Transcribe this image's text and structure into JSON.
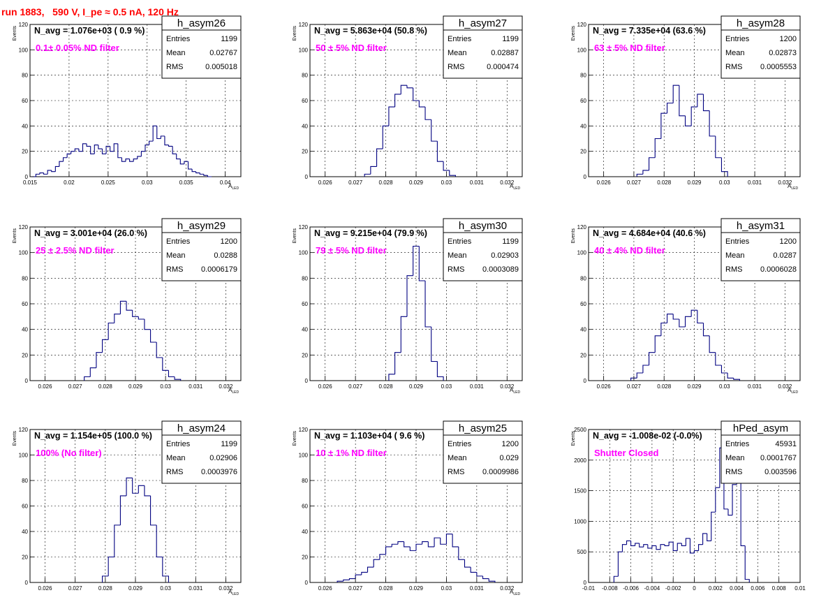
{
  "run_title": "run 1883,   590 V, I_pe ≈ 0.5 nA, 120 Hz",
  "colors": {
    "title": "#ff0000",
    "annotation": "#ff00ff",
    "histogram": "#000080",
    "grid": "#000000"
  },
  "chart_data": [
    {
      "type": "histogram",
      "name": "h_asym26",
      "navg": "N_avg = 1.076e+03 ( 0.9 %)",
      "filter": "0.1± 0.05% ND filter",
      "stats": {
        "entries": "1199",
        "mean": "0.02767",
        "rms": "0.005018"
      },
      "xlim": [
        0.015,
        0.042
      ],
      "ylim": [
        0,
        120
      ],
      "xticks": [
        "0.015",
        "0.02",
        "0.025",
        "0.03",
        "0.035",
        "0.04"
      ],
      "yticks": [
        "0",
        "20",
        "40",
        "60",
        "80",
        "100",
        "120"
      ],
      "ylabel": "Events",
      "xlabel": "A_LED",
      "x": [
        0.0155,
        0.016,
        0.0165,
        0.017,
        0.0175,
        0.018,
        0.0185,
        0.019,
        0.0195,
        0.02,
        0.0205,
        0.021,
        0.0215,
        0.022,
        0.0225,
        0.023,
        0.0235,
        0.024,
        0.0245,
        0.025,
        0.0255,
        0.026,
        0.0265,
        0.027,
        0.0275,
        0.028,
        0.0285,
        0.029,
        0.0295,
        0.03,
        0.0305,
        0.031,
        0.0315,
        0.032,
        0.0325,
        0.033,
        0.0335,
        0.034,
        0.0345,
        0.035,
        0.0355,
        0.036,
        0.0365,
        0.037,
        0.0375,
        0.038
      ],
      "values": [
        0,
        2,
        3,
        2,
        5,
        4,
        8,
        12,
        15,
        18,
        20,
        22,
        20,
        26,
        24,
        18,
        25,
        22,
        18,
        24,
        20,
        26,
        15,
        12,
        14,
        12,
        14,
        16,
        20,
        25,
        28,
        40,
        30,
        32,
        25,
        24,
        18,
        14,
        10,
        12,
        6,
        4,
        3,
        2,
        1,
        0
      ]
    },
    {
      "type": "histogram",
      "name": "h_asym27",
      "navg": "N_avg = 5.863e+04 (50.8 %)",
      "filter": "50 ± 5% ND filter",
      "stats": {
        "entries": "1199",
        "mean": "0.02887",
        "rms": "0.000474"
      },
      "xlim": [
        0.0255,
        0.0325
      ],
      "ylim": [
        0,
        120
      ],
      "xticks": [
        "0.026",
        "0.027",
        "0.028",
        "0.029",
        "0.03",
        "0.031",
        "0.032"
      ],
      "yticks": [
        "0",
        "20",
        "40",
        "60",
        "80",
        "100",
        "120"
      ],
      "ylabel": "Events",
      "xlabel": "A_LED",
      "x": [
        0.0274,
        0.0276,
        0.0278,
        0.028,
        0.0282,
        0.0284,
        0.0286,
        0.0288,
        0.029,
        0.0292,
        0.0294,
        0.0296,
        0.0298,
        0.03,
        0.0302
      ],
      "values": [
        2,
        8,
        22,
        40,
        55,
        65,
        72,
        70,
        60,
        55,
        45,
        28,
        12,
        5,
        1
      ]
    },
    {
      "type": "histogram",
      "name": "h_asym28",
      "navg": "N_avg = 7.335e+04 (63.6 %)",
      "filter": "63 ± 5% ND filter",
      "stats": {
        "entries": "1200",
        "mean": "0.02873",
        "rms": "0.0005553"
      },
      "xlim": [
        0.0255,
        0.0325
      ],
      "ylim": [
        0,
        120
      ],
      "xticks": [
        "0.026",
        "0.027",
        "0.028",
        "0.029",
        "0.03",
        "0.031",
        "0.032"
      ],
      "yticks": [
        "0",
        "20",
        "40",
        "60",
        "80",
        "100",
        "120"
      ],
      "ylabel": "Events",
      "xlabel": "A_LED",
      "x": [
        0.0272,
        0.0274,
        0.0276,
        0.0278,
        0.028,
        0.0282,
        0.0284,
        0.0286,
        0.0288,
        0.029,
        0.0292,
        0.0294,
        0.0296,
        0.0298,
        0.03
      ],
      "values": [
        2,
        5,
        15,
        30,
        50,
        58,
        72,
        48,
        40,
        55,
        65,
        52,
        32,
        15,
        4
      ]
    },
    {
      "type": "histogram",
      "name": "h_asym29",
      "navg": "N_avg = 3.001e+04 (26.0 %)",
      "filter": "25 ± 2.5% ND filter",
      "stats": {
        "entries": "1200",
        "mean": "0.0288",
        "rms": "0.0006179"
      },
      "xlim": [
        0.0255,
        0.0325
      ],
      "ylim": [
        0,
        120
      ],
      "xticks": [
        "0.026",
        "0.027",
        "0.028",
        "0.029",
        "0.03",
        "0.031",
        "0.032"
      ],
      "yticks": [
        "0",
        "20",
        "40",
        "60",
        "80",
        "100",
        "120"
      ],
      "ylabel": "Events",
      "xlabel": "A_LED",
      "x": [
        0.0274,
        0.0276,
        0.0278,
        0.028,
        0.0282,
        0.0284,
        0.0286,
        0.0288,
        0.029,
        0.0292,
        0.0294,
        0.0296,
        0.0298,
        0.03,
        0.0302,
        0.0304
      ],
      "values": [
        3,
        10,
        22,
        32,
        45,
        52,
        62,
        55,
        50,
        48,
        40,
        30,
        18,
        8,
        3,
        1
      ]
    },
    {
      "type": "histogram",
      "name": "h_asym30",
      "navg": "N_avg = 9.215e+04 (79.9 %)",
      "filter": "79 ± 5% ND filter",
      "stats": {
        "entries": "1199",
        "mean": "0.02903",
        "rms": "0.0003089"
      },
      "xlim": [
        0.0255,
        0.0325
      ],
      "ylim": [
        0,
        120
      ],
      "xticks": [
        "0.026",
        "0.027",
        "0.028",
        "0.029",
        "0.03",
        "0.031",
        "0.032"
      ],
      "yticks": [
        "0",
        "20",
        "40",
        "60",
        "80",
        "100",
        "120"
      ],
      "ylabel": "Events",
      "xlabel": "A_LED",
      "x": [
        0.0282,
        0.0284,
        0.0286,
        0.0288,
        0.029,
        0.0292,
        0.0294,
        0.0296,
        0.0298
      ],
      "values": [
        5,
        22,
        50,
        82,
        105,
        78,
        42,
        15,
        3
      ]
    },
    {
      "type": "histogram",
      "name": "h_asym31",
      "navg": "N_avg = 4.684e+04 (40.6 %)",
      "filter": "40 ± 4% ND filter",
      "stats": {
        "entries": "1200",
        "mean": "0.0287",
        "rms": "0.0006028"
      },
      "xlim": [
        0.0255,
        0.0325
      ],
      "ylim": [
        0,
        120
      ],
      "xticks": [
        "0.026",
        "0.027",
        "0.028",
        "0.029",
        "0.03",
        "0.031",
        "0.032"
      ],
      "yticks": [
        "0",
        "20",
        "40",
        "60",
        "80",
        "100",
        "120"
      ],
      "ylabel": "Events",
      "xlabel": "A_LED",
      "x": [
        0.027,
        0.0272,
        0.0274,
        0.0276,
        0.0278,
        0.028,
        0.0282,
        0.0284,
        0.0286,
        0.0288,
        0.029,
        0.0292,
        0.0294,
        0.0296,
        0.0298,
        0.03,
        0.0302,
        0.0304
      ],
      "values": [
        2,
        6,
        12,
        22,
        35,
        45,
        52,
        48,
        42,
        50,
        55,
        45,
        35,
        22,
        12,
        6,
        2,
        1
      ]
    },
    {
      "type": "histogram",
      "name": "h_asym24",
      "navg": "N_avg = 1.154e+05 (100.0 %)",
      "filter": "100% (No filter)",
      "stats": {
        "entries": "1199",
        "mean": "0.02906",
        "rms": "0.0003976"
      },
      "xlim": [
        0.0255,
        0.0325
      ],
      "ylim": [
        0,
        120
      ],
      "xticks": [
        "0.026",
        "0.027",
        "0.028",
        "0.029",
        "0.03",
        "0.031",
        "0.032"
      ],
      "yticks": [
        "0",
        "20",
        "40",
        "60",
        "80",
        "100",
        "120"
      ],
      "ylabel": "Events",
      "xlabel": "A_LED",
      "x": [
        0.028,
        0.0282,
        0.0284,
        0.0286,
        0.0288,
        0.029,
        0.0292,
        0.0294,
        0.0296,
        0.0298,
        0.03
      ],
      "values": [
        5,
        20,
        45,
        68,
        82,
        70,
        76,
        68,
        45,
        20,
        5
      ]
    },
    {
      "type": "histogram",
      "name": "h_asym25",
      "navg": "N_avg = 1.103e+04 ( 9.6 %)",
      "filter": "10 ± 1% ND filter",
      "stats": {
        "entries": "1200",
        "mean": "0.029",
        "rms": "0.0009986"
      },
      "xlim": [
        0.0255,
        0.0325
      ],
      "ylim": [
        0,
        120
      ],
      "xticks": [
        "0.026",
        "0.027",
        "0.028",
        "0.029",
        "0.03",
        "0.031",
        "0.032"
      ],
      "yticks": [
        "0",
        "20",
        "40",
        "60",
        "80",
        "100",
        "120"
      ],
      "ylabel": "Events",
      "xlabel": "A_LED",
      "x": [
        0.0265,
        0.0267,
        0.0269,
        0.0271,
        0.0273,
        0.0275,
        0.0277,
        0.0279,
        0.0281,
        0.0283,
        0.0285,
        0.0287,
        0.0289,
        0.0291,
        0.0293,
        0.0295,
        0.0297,
        0.0299,
        0.0301,
        0.0303,
        0.0305,
        0.0307,
        0.0309,
        0.0311,
        0.0313,
        0.0315
      ],
      "values": [
        1,
        2,
        3,
        6,
        8,
        12,
        18,
        22,
        28,
        30,
        32,
        28,
        25,
        30,
        32,
        28,
        35,
        30,
        38,
        28,
        18,
        12,
        8,
        5,
        3,
        1
      ]
    },
    {
      "type": "histogram",
      "name": "hPed_asym",
      "navg": "N_avg = -1.008e-02 (-0.0%)",
      "filter": "Shutter Closed",
      "stats": {
        "entries": "45931",
        "mean": "0.0001767",
        "rms": "0.003596"
      },
      "xlim": [
        -0.01,
        0.01
      ],
      "ylim": [
        0,
        2500
      ],
      "xticks": [
        "-0.01",
        "-0.008",
        "-0.006",
        "-0.004",
        "-0.002",
        "0",
        "0.002",
        "0.004",
        "0.006",
        "0.008",
        "0.01"
      ],
      "yticks": [
        "0",
        "500",
        "1000",
        "1500",
        "2000",
        "2500"
      ],
      "ylabel": "Events",
      "xlabel": "",
      "x": [
        -0.0074,
        -0.007,
        -0.0066,
        -0.0062,
        -0.0058,
        -0.0054,
        -0.005,
        -0.0046,
        -0.0042,
        -0.0038,
        -0.0034,
        -0.003,
        -0.0026,
        -0.0022,
        -0.0018,
        -0.0014,
        -0.001,
        -0.0006,
        -0.0002,
        0.0002,
        0.0006,
        0.001,
        0.0014,
        0.0018,
        0.0022,
        0.0026,
        0.003,
        0.0034,
        0.0038,
        0.0042,
        0.0046,
        0.005
      ],
      "values": [
        100,
        500,
        620,
        680,
        600,
        640,
        580,
        620,
        560,
        600,
        540,
        620,
        600,
        660,
        520,
        640,
        600,
        720,
        480,
        520,
        620,
        800,
        680,
        1150,
        1550,
        2200,
        1200,
        1100,
        1600,
        2300,
        600,
        50
      ]
    }
  ]
}
